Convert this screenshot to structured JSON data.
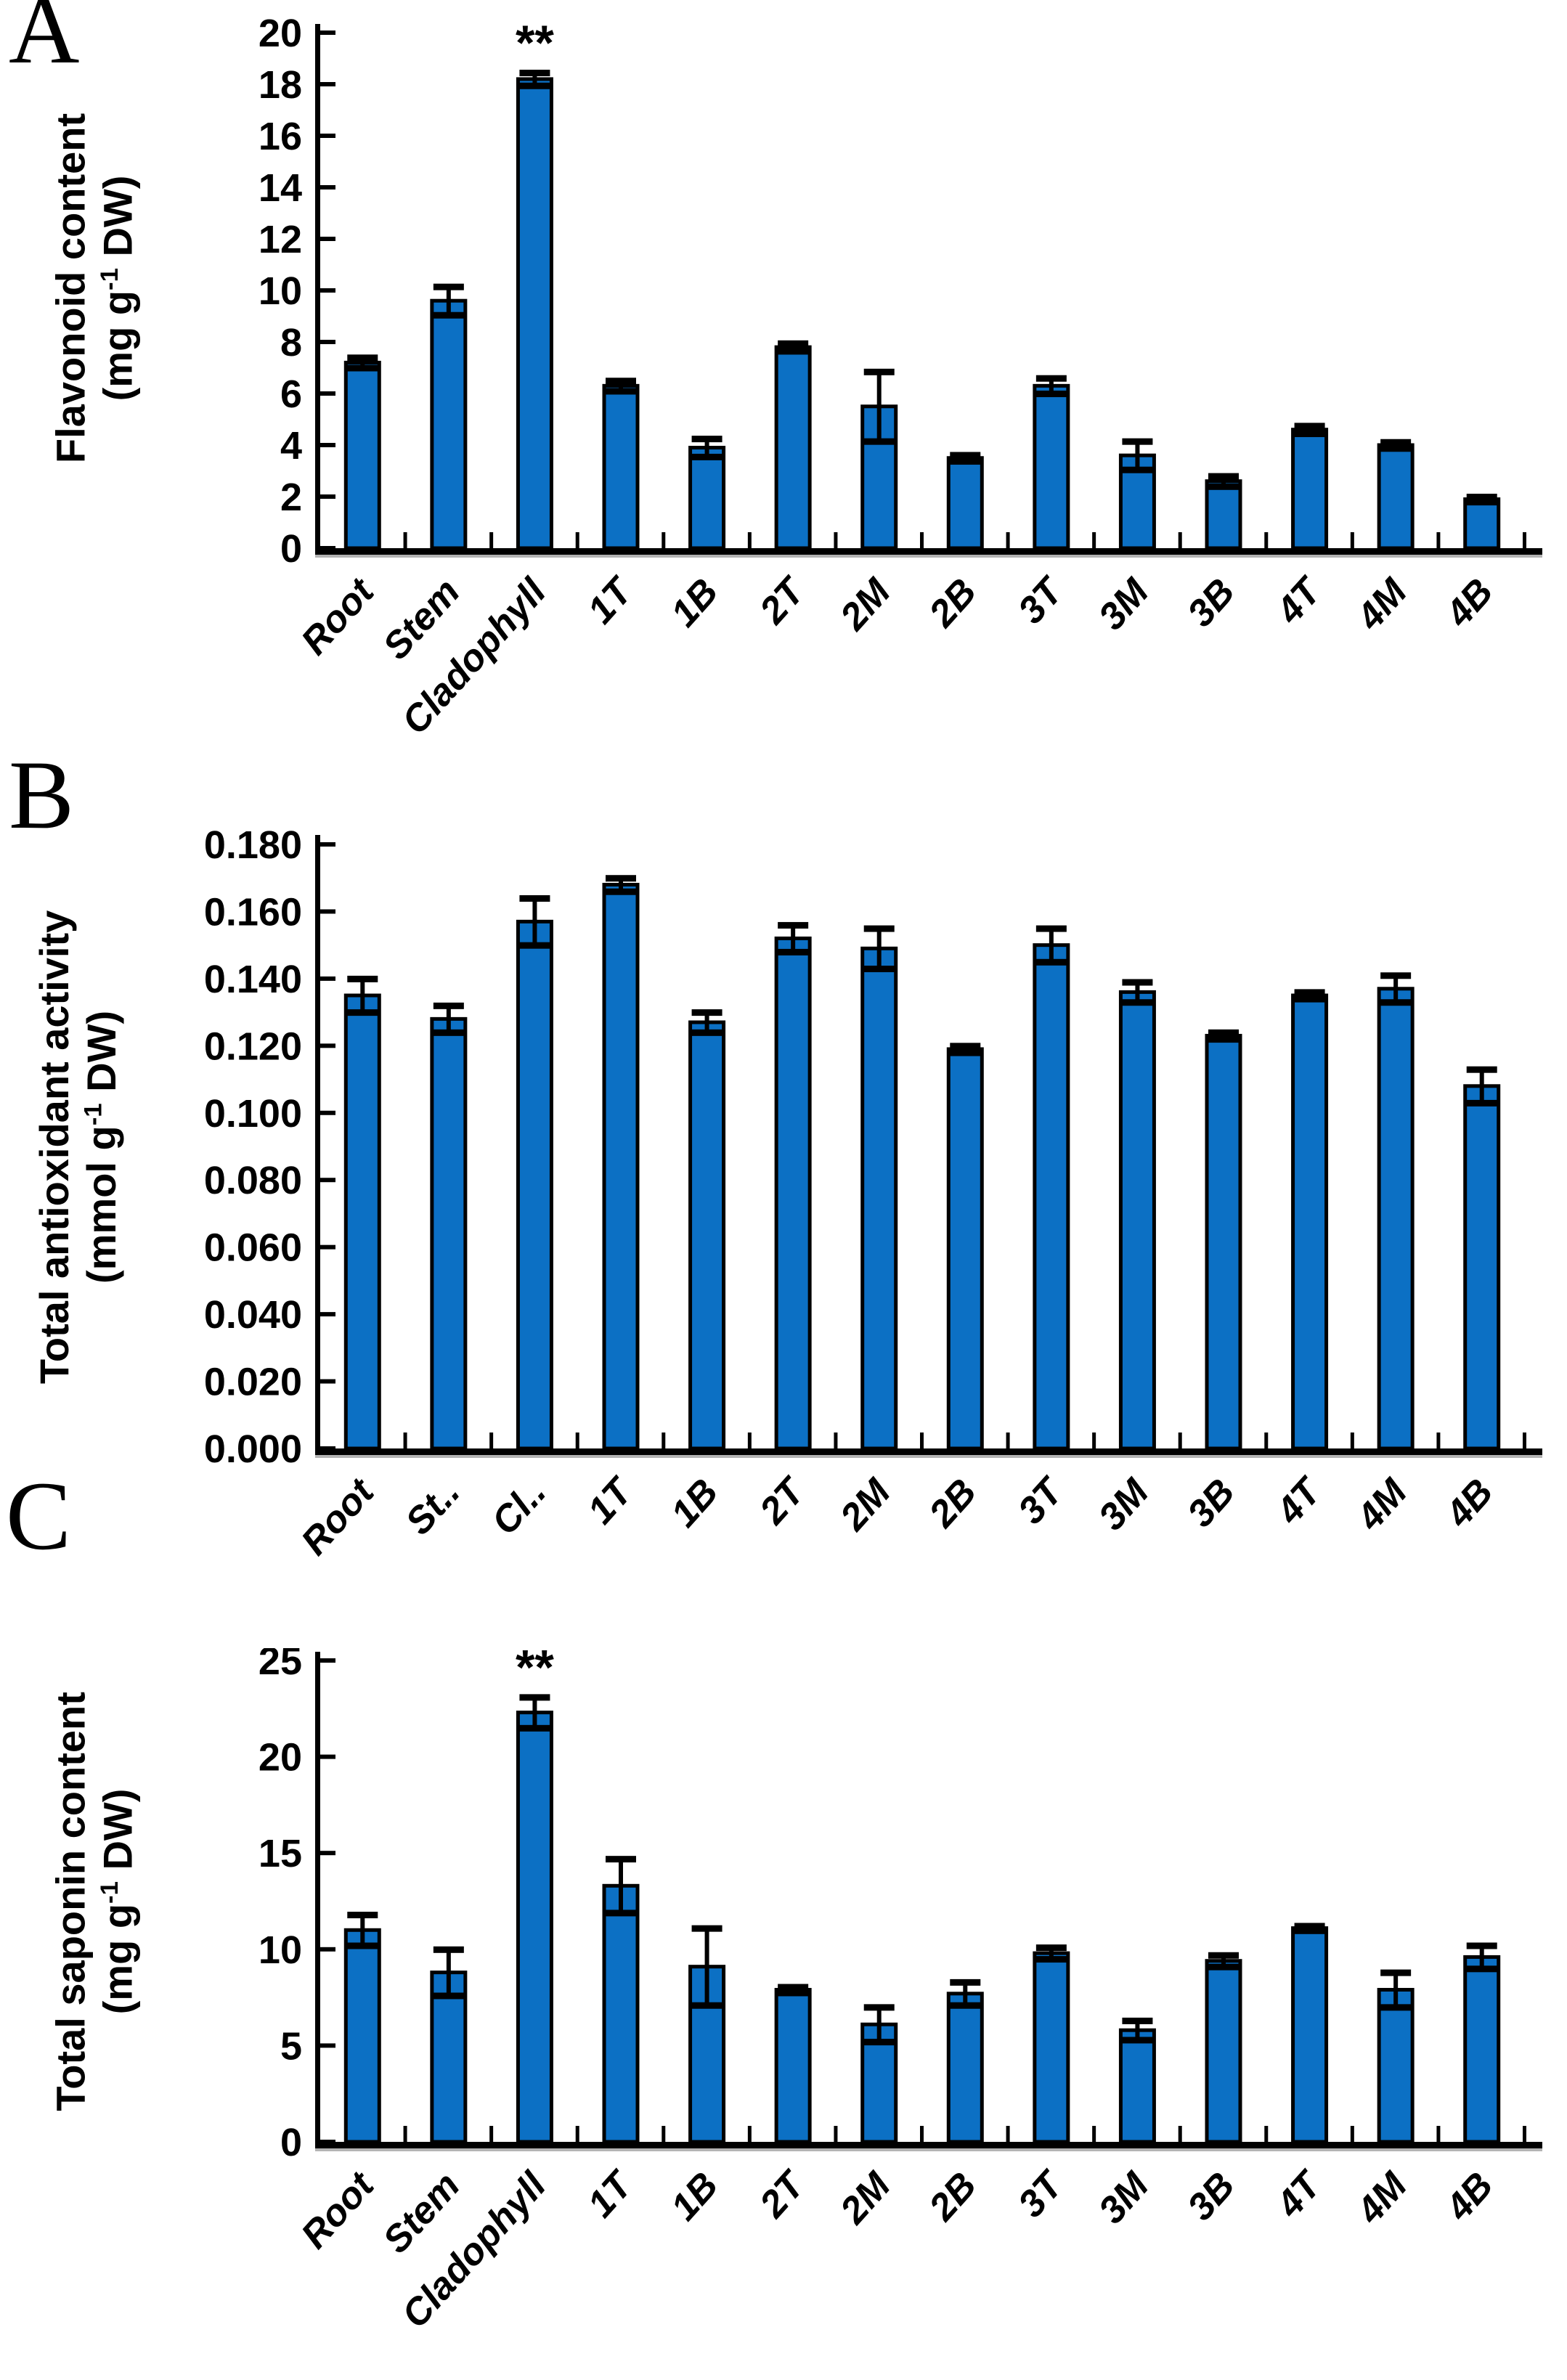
{
  "colors": {
    "bar_fill": "#0c70c4",
    "bar_stroke": "#000000",
    "axis": "#000000",
    "baseline_shadow": "#b3b3b3"
  },
  "chart_data": [
    {
      "panel_label": "A",
      "type": "bar",
      "ylabel_line1": "Flavonoid content",
      "unit_pre": "(mg g",
      "unit_sup": "-1",
      "unit_post": " DW)",
      "categories": [
        "Root",
        "Stem",
        "Cladophyll",
        "1T",
        "1B",
        "2T",
        "2M",
        "2B",
        "3T",
        "3M",
        "3B",
        "4T",
        "4M",
        "4B"
      ],
      "values": [
        7.2,
        9.6,
        18.2,
        6.3,
        3.9,
        7.8,
        5.5,
        3.5,
        6.3,
        3.6,
        2.6,
        4.6,
        4.0,
        1.9
      ],
      "errors": [
        0.2,
        0.55,
        0.25,
        0.2,
        0.35,
        0.15,
        1.35,
        0.12,
        0.3,
        0.55,
        0.2,
        0.15,
        0.12,
        0.1
      ],
      "significance": {
        "category_index": 2,
        "label": "**"
      },
      "ylim": [
        0,
        20
      ],
      "ytick_step": 2,
      "ytick_decimals": 0,
      "grid": false,
      "legend": null
    },
    {
      "panel_label": "B",
      "type": "bar",
      "ylabel_line1": "Total antioxidant activity",
      "unit_pre": "(mmol g",
      "unit_sup": "-1",
      "unit_post": " DW)",
      "categories": [
        "Root",
        "St..",
        "Cl..",
        "1T",
        "1B",
        "2T",
        "2M",
        "2B",
        "3T",
        "3M",
        "3B",
        "4T",
        "4M",
        "4B"
      ],
      "values": [
        0.135,
        0.128,
        0.157,
        0.168,
        0.127,
        0.152,
        0.149,
        0.119,
        0.15,
        0.136,
        0.123,
        0.135,
        0.137,
        0.108
      ],
      "errors": [
        0.005,
        0.004,
        0.007,
        0.002,
        0.003,
        0.004,
        0.006,
        0.001,
        0.005,
        0.003,
        0.001,
        0.001,
        0.004,
        0.005
      ],
      "significance": null,
      "ylim": [
        0,
        0.18
      ],
      "ytick_step": 0.02,
      "ytick_decimals": 3,
      "grid": false,
      "legend": null
    },
    {
      "panel_label": "C",
      "type": "bar",
      "ylabel_line1": "Total saponin content",
      "unit_pre": "(mg g",
      "unit_sup": "-1",
      "unit_post": " DW)",
      "categories": [
        "Root",
        "Stem",
        "Cladophyll",
        "1T",
        "1B",
        "2T",
        "2M",
        "2B",
        "3T",
        "3M",
        "3B",
        "4T",
        "4M",
        "4B"
      ],
      "values": [
        11.0,
        8.8,
        22.3,
        13.3,
        9.1,
        7.9,
        6.1,
        7.7,
        9.8,
        5.8,
        9.4,
        11.1,
        7.9,
        9.6
      ],
      "errors": [
        0.8,
        1.2,
        0.8,
        1.4,
        2.0,
        0.15,
        0.9,
        0.6,
        0.3,
        0.5,
        0.3,
        0.12,
        0.9,
        0.6
      ],
      "significance": {
        "category_index": 2,
        "label": "**"
      },
      "ylim": [
        0,
        25
      ],
      "ytick_step": 5,
      "ytick_decimals": 0,
      "grid": false,
      "legend": null
    }
  ]
}
